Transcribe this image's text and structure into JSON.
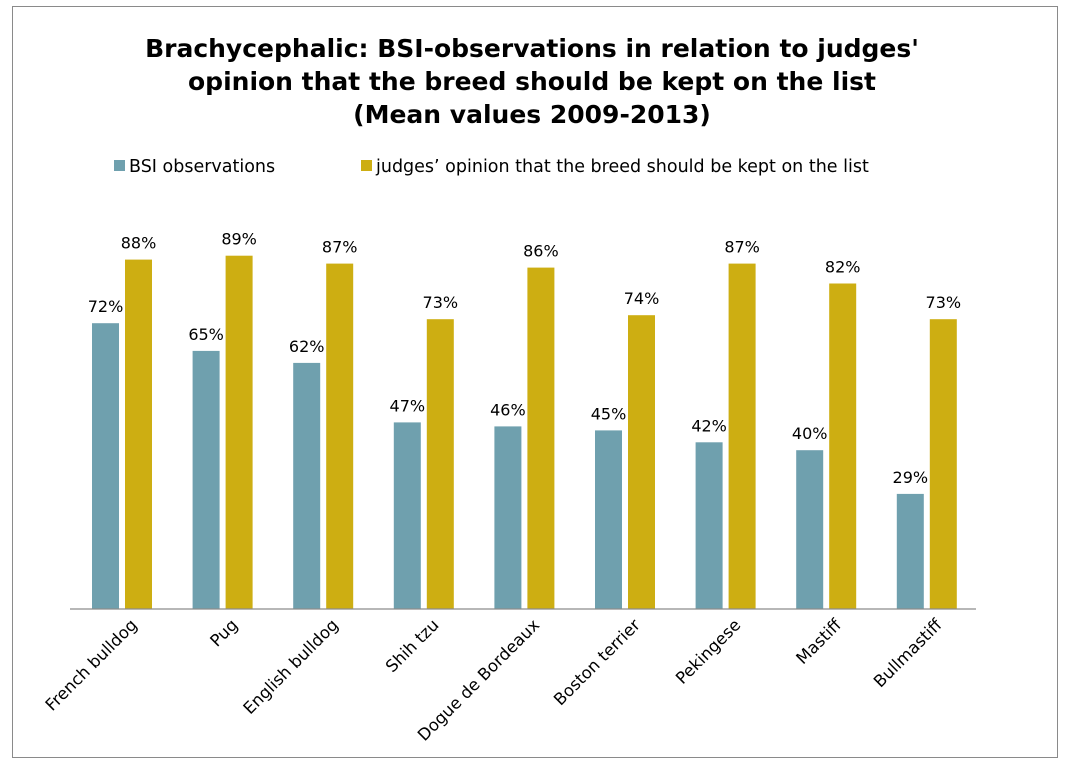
{
  "chart_data": {
    "type": "bar",
    "title_lines": [
      "Brachycephalic: BSI-observations in relation to judges'",
      "opinion that the breed should be kept on the list",
      "(Mean values 2009-2013)"
    ],
    "categories": [
      "French bulldog",
      "Pug",
      "English bulldog",
      "Shih tzu",
      "Dogue de Bordeaux",
      "Boston terrier",
      "Pekingese",
      "Mastiff",
      "Bullmastiff"
    ],
    "series": [
      {
        "name": "BSI observations",
        "color": "#6fa0ae",
        "values": [
          72,
          65,
          62,
          47,
          46,
          45,
          42,
          40,
          29
        ],
        "labels": [
          "72%",
          "65%",
          "62%",
          "47%",
          "46%",
          "45%",
          "42%",
          "40%",
          "29%"
        ]
      },
      {
        "name": "judges’ opinion that the  breed should be  kept on the  list",
        "color": "#cdae12",
        "values": [
          88,
          89,
          87,
          73,
          86,
          74,
          87,
          82,
          73
        ],
        "labels": [
          "88%",
          "89%",
          "87%",
          "73%",
          "86%",
          "74%",
          "87%",
          "82%",
          "73%"
        ]
      }
    ],
    "ylim": [
      0,
      100
    ],
    "grid": false,
    "legend_position": "top",
    "xlabel": "",
    "ylabel": ""
  }
}
